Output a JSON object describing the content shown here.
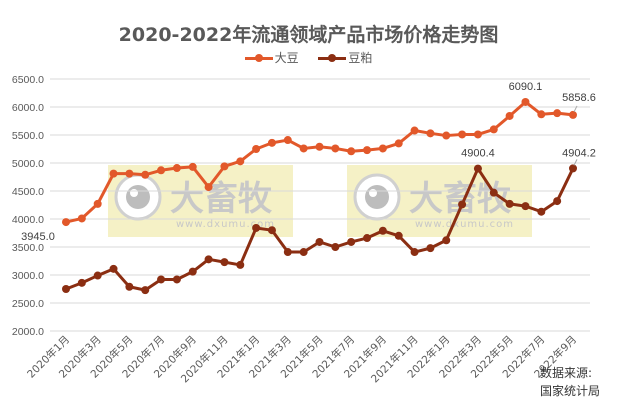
{
  "chart_data": {
    "type": "line",
    "title": "2020-2022年流通领域产品市场价格走势图",
    "xlabel": "",
    "ylabel": "",
    "ylim": [
      2000,
      6500
    ],
    "yticks": [
      "2000.0",
      "2500.0",
      "3000.0",
      "3500.0",
      "4000.0",
      "4500.0",
      "5000.0",
      "5500.0",
      "6000.0",
      "6500.0"
    ],
    "grid": true,
    "legend_position": "top",
    "x": [
      "2020年1月",
      "2020年2月",
      "2020年3月",
      "2020年4月",
      "2020年5月",
      "2020年6月",
      "2020年7月",
      "2020年8月",
      "2020年9月",
      "2020年10月",
      "2020年11月",
      "2020年12月",
      "2021年1月",
      "2021年2月",
      "2021年3月",
      "2021年4月",
      "2021年5月",
      "2021年6月",
      "2021年7月",
      "2021年8月",
      "2021年9月",
      "2021年10月",
      "2021年11月",
      "2021年12月",
      "2022年1月",
      "2022年2月",
      "2022年3月",
      "2022年4月",
      "2022年5月",
      "2022年6月",
      "2022年7月",
      "2022年8月",
      "2022年9月"
    ],
    "x_tick_labels": [
      "2020年1月",
      "2020年3月",
      "2020年5月",
      "2020年7月",
      "2020年9月",
      "2020年11月",
      "2021年1月",
      "2021年3月",
      "2021年5月",
      "2021年7月",
      "2021年9月",
      "2021年11月",
      "2022年1月",
      "2022年3月",
      "2022年5月",
      "2022年7月",
      "2022年9月"
    ],
    "series": [
      {
        "name": "大豆",
        "color": "#E2582A",
        "values": [
          3945.0,
          4010,
          4270,
          4810,
          4810,
          4790,
          4870,
          4910,
          4930,
          4570,
          4940,
          5030,
          5250,
          5360,
          5410,
          5260,
          5290,
          5260,
          5210,
          5230,
          5260,
          5350,
          5580,
          5530,
          5490,
          5510,
          5510,
          5600,
          5840,
          6090.1,
          5870,
          5890,
          5858.6
        ]
      },
      {
        "name": "豆粕",
        "color": "#8B2E12",
        "values": [
          2750,
          2860,
          2990,
          3110,
          2790,
          2730,
          2920,
          2920,
          3060,
          3280,
          3230,
          3180,
          3840,
          3800,
          3410,
          3410,
          3590,
          3500,
          3590,
          3660,
          3790,
          3700,
          3410,
          3480,
          3620,
          4260,
          4900.4,
          4470,
          4270,
          4230,
          4130,
          4320,
          4904.2
        ]
      }
    ],
    "annotations": [
      {
        "series": "大豆",
        "index": 0,
        "label": "3945.0"
      },
      {
        "series": "大豆",
        "index": 29,
        "label": "6090.1"
      },
      {
        "series": "大豆",
        "index": 32,
        "label": "5858.6"
      },
      {
        "series": "豆粕",
        "index": 26,
        "label": "4900.4"
      },
      {
        "series": "豆粕",
        "index": 32,
        "label": "4904.2"
      }
    ]
  },
  "title": "2020-2022年流通领域产品市场价格走势图",
  "legend": {
    "soy": "大豆",
    "meal": "豆粕"
  },
  "source": {
    "line1": "数据来源:",
    "line2": "国家统计局"
  },
  "watermark": {
    "brand": "大畜牧",
    "url": "www.dxumu.com"
  }
}
